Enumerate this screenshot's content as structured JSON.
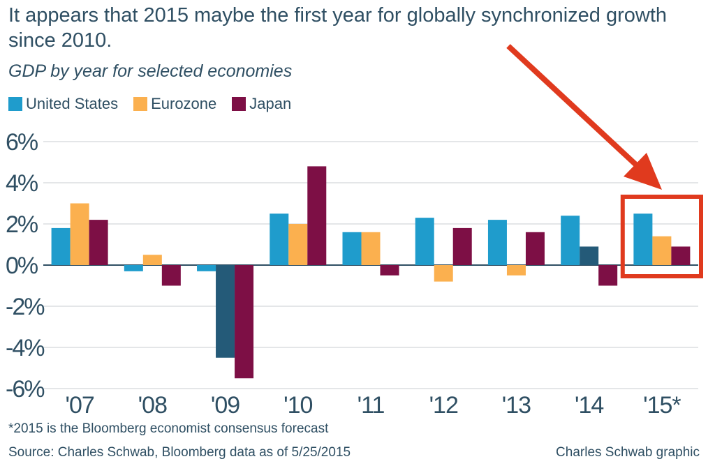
{
  "header": {
    "title": "It appears that 2015 maybe the first year for globally synchronized growth since 2010.",
    "subtitle": "GDP by year for selected economies"
  },
  "footer": {
    "footnote": "*2015 is the Bloomberg economist consensus forecast",
    "source": "Source: Charles Schwab, Bloomberg data as of 5/25/2015",
    "credit": "Charles Schwab graphic"
  },
  "colors": {
    "united_states": "#1f9ccc",
    "united_states_dark": "#245a78",
    "eurozone": "#fbb04f",
    "japan": "#7d0f45",
    "highlight": "#e03a1e",
    "text": "#2f4f63"
  },
  "chart_data": {
    "type": "bar",
    "title": "GDP by year for selected economies",
    "xlabel": "",
    "ylabel": "",
    "categories": [
      "'07",
      "'08",
      "'09",
      "'10",
      "'11",
      "'12",
      "'13",
      "'14",
      "'15*"
    ],
    "series": [
      {
        "name": "United States",
        "values": [
          1.8,
          -0.3,
          -0.3,
          2.5,
          1.6,
          2.3,
          2.2,
          2.4,
          2.5
        ]
      },
      {
        "name": "Eurozone",
        "values": [
          3.0,
          0.5,
          -4.5,
          2.0,
          1.6,
          -0.8,
          -0.5,
          0.9,
          1.4
        ]
      },
      {
        "name": "Japan",
        "values": [
          2.2,
          -1.0,
          -5.5,
          4.8,
          -0.5,
          1.8,
          1.6,
          -1.0,
          0.9
        ]
      }
    ],
    "dark_bars": [
      {
        "series": 1,
        "category": 2
      },
      {
        "series": 1,
        "category": 7
      }
    ],
    "ylim": [
      -6,
      6
    ],
    "yticks": [
      {
        "value": 6,
        "label": "6%"
      },
      {
        "value": 4,
        "label": "4%"
      },
      {
        "value": 2,
        "label": "2%"
      },
      {
        "value": 0,
        "label": "0%"
      },
      {
        "value": -2,
        "label": "-2%"
      },
      {
        "value": -4,
        "label": "-4%"
      },
      {
        "value": -6,
        "label": "-6%"
      }
    ],
    "grid": true,
    "legend_placement": "top-left",
    "highlight_category": 8
  }
}
